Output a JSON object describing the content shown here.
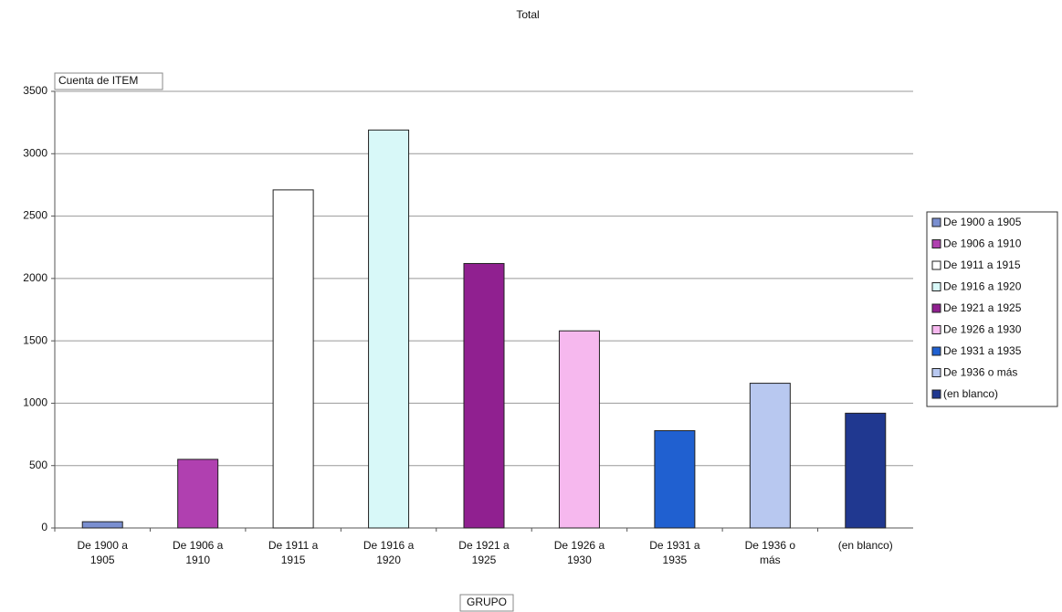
{
  "chart_data": {
    "type": "bar",
    "title": "Total",
    "y_label": "Cuenta de ITEM",
    "x_label": "GRUPO",
    "categories": [
      "De 1900 a 1905",
      "De 1906 a 1910",
      "De 1911 a 1915",
      "De 1916 a 1920",
      "De 1921 a 1925",
      "De 1926 a 1930",
      "De 1931 a 1935",
      "De 1936 o más",
      "(en blanco)"
    ],
    "values": [
      50,
      550,
      2710,
      3190,
      2120,
      1580,
      780,
      1160,
      920
    ],
    "colors": [
      "#7a8fd0",
      "#b040b0",
      "#ffffff",
      "#d8f8f8",
      "#902090",
      "#f6b8ee",
      "#2060d0",
      "#b8c8f0",
      "#203890"
    ],
    "ylim": [
      0,
      3500
    ],
    "yticks": [
      0,
      500,
      1000,
      1500,
      2000,
      2500,
      3000,
      3500
    ],
    "grid": true,
    "legend": "right"
  }
}
